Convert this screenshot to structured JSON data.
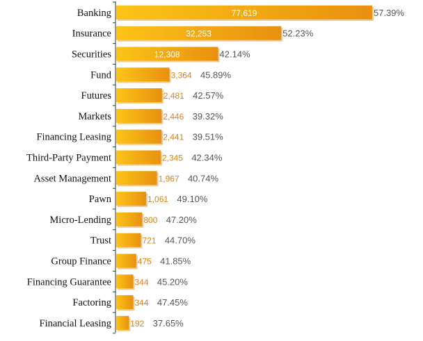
{
  "chart_data": {
    "type": "bar",
    "orientation": "horizontal",
    "categories": [
      "Banking",
      "Insurance",
      "Securities",
      "Fund",
      "Futures",
      "Markets",
      "Financing Leasing",
      "Third-Party Payment",
      "Asset Management",
      "Pawn",
      "Micro-Lending",
      "Trust",
      "Group Finance",
      "Financing Guarantee",
      "Factoring",
      "Financial Leasing"
    ],
    "values": [
      77619,
      32253,
      12308,
      3364,
      2481,
      2446,
      2441,
      2345,
      1967,
      1061,
      800,
      721,
      475,
      344,
      344,
      192
    ],
    "value_labels": [
      "77,619",
      "32,253",
      "12,308",
      "3,364",
      "2,481",
      "2,446",
      "2,441",
      "2,345",
      "1,967",
      "1,061",
      "800",
      "721",
      "475",
      "344",
      "344",
      "192"
    ],
    "percentages": [
      "57.39%",
      "52.23%",
      "42.14%",
      "45.89%",
      "42.57%",
      "39.32%",
      "39.51%",
      "42.34%",
      "40.74%",
      "49.10%",
      "47.20%",
      "44.70%",
      "41.85%",
      "45.20%",
      "47.45%",
      "37.65%"
    ],
    "scale": "sqrt",
    "grid": false,
    "legend": "none",
    "colors": {
      "bar_start": "#fcc417",
      "bar_end": "#e8900f",
      "shadow": "#f6c98e",
      "inside_label": "#ffffff",
      "outside_label": "#e07f10",
      "percent": "#555555",
      "axis": "#333333"
    }
  }
}
